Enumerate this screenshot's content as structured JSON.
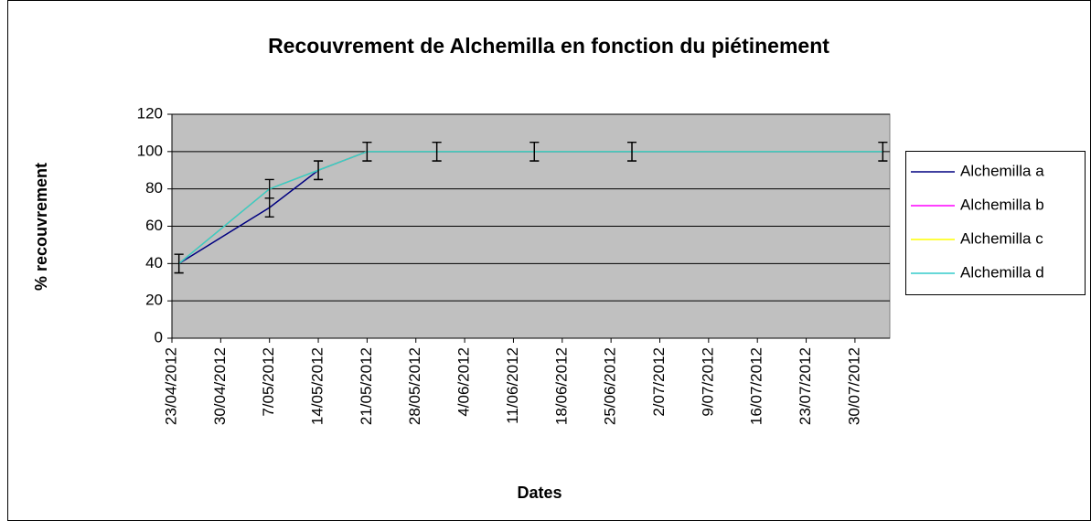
{
  "chart_data": {
    "type": "line",
    "title": "Recouvrement de Alchemilla en fonction du piétinement",
    "x_label": "Dates",
    "y_label": "% recouvrement",
    "x": [
      "2012-04-24",
      "2012-05-07",
      "2012-05-14",
      "2012-05-21",
      "2012-05-31",
      "2012-06-14",
      "2012-06-28",
      "2012-08-03"
    ],
    "series": [
      {
        "name": "Alchemilla a",
        "color": "#000080",
        "values": [
          40,
          70,
          90,
          100,
          100,
          100,
          100,
          100
        ],
        "errors": [
          5,
          5,
          5,
          5,
          5,
          5,
          5,
          5
        ]
      },
      {
        "name": "Alchemilla b",
        "color": "#ff00ff",
        "values": [
          40,
          80,
          90,
          100,
          100,
          100,
          100,
          100
        ]
      },
      {
        "name": "Alchemilla c",
        "color": "#ffff00",
        "values": [
          40,
          80,
          90,
          100,
          100,
          100,
          100,
          100
        ]
      },
      {
        "name": "Alchemilla d",
        "color": "#33cccc",
        "values": [
          40,
          80,
          90,
          100,
          100,
          100,
          100,
          100
        ],
        "errors": [
          5,
          5,
          5,
          5,
          5,
          5,
          5,
          5
        ]
      }
    ],
    "xlim": [
      "2012-04-23",
      "2012-08-04"
    ],
    "xticks": [
      {
        "value": "2012-04-23",
        "label": "23/04/2012"
      },
      {
        "value": "2012-04-30",
        "label": "30/04/2012"
      },
      {
        "value": "2012-05-07",
        "label": "7/05/2012"
      },
      {
        "value": "2012-05-14",
        "label": "14/05/2012"
      },
      {
        "value": "2012-05-21",
        "label": "21/05/2012"
      },
      {
        "value": "2012-05-28",
        "label": "28/05/2012"
      },
      {
        "value": "2012-06-04",
        "label": "4/06/2012"
      },
      {
        "value": "2012-06-11",
        "label": "11/06/2012"
      },
      {
        "value": "2012-06-18",
        "label": "18/06/2012"
      },
      {
        "value": "2012-06-25",
        "label": "25/06/2012"
      },
      {
        "value": "2012-07-02",
        "label": "2/07/2012"
      },
      {
        "value": "2012-07-09",
        "label": "9/07/2012"
      },
      {
        "value": "2012-07-16",
        "label": "16/07/2012"
      },
      {
        "value": "2012-07-23",
        "label": "23/07/2012"
      },
      {
        "value": "2012-07-30",
        "label": "30/07/2012"
      }
    ],
    "ylim": [
      0,
      120
    ],
    "yticks": [
      0,
      20,
      40,
      60,
      80,
      100,
      120
    ],
    "grid": true,
    "legend": "right",
    "plot_background": "#c0c0c0"
  }
}
